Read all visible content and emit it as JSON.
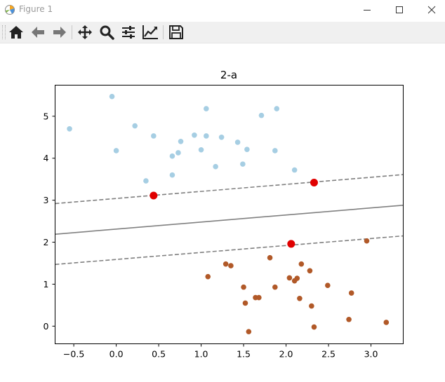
{
  "window": {
    "title": "Figure 1",
    "controls": [
      "minimize",
      "maximize",
      "close"
    ]
  },
  "toolbar": {
    "buttons": [
      {
        "name": "home-button",
        "icon": "home-icon"
      },
      {
        "name": "back-button",
        "icon": "arrow-left-icon"
      },
      {
        "name": "forward-button",
        "icon": "arrow-right-icon"
      },
      {
        "name": "pan-button",
        "icon": "move-icon"
      },
      {
        "name": "zoom-button",
        "icon": "magnifier-icon"
      },
      {
        "name": "subplots-button",
        "icon": "sliders-icon"
      },
      {
        "name": "edit-axis-button",
        "icon": "line-chart-icon"
      },
      {
        "name": "save-button",
        "icon": "floppy-disk-icon"
      }
    ]
  },
  "chart_data": {
    "type": "scatter",
    "title": "2-a",
    "xlabel": "",
    "ylabel": "",
    "xlim": [
      -0.72,
      3.38
    ],
    "ylim": [
      -0.42,
      5.74
    ],
    "xticks": [
      "−0.5",
      "0.0",
      "0.5",
      "1.0",
      "1.5",
      "2.0",
      "2.5",
      "3.0"
    ],
    "xtick_values": [
      -0.5,
      0.0,
      0.5,
      1.0,
      1.5,
      2.0,
      2.5,
      3.0
    ],
    "yticks": [
      "0",
      "1",
      "2",
      "3",
      "4",
      "5"
    ],
    "ytick_values": [
      0,
      1,
      2,
      3,
      4,
      5
    ],
    "grid": false,
    "colors": {
      "class_a": "#a6cee3",
      "class_b": "#b15928",
      "support_vectors": "#e00000",
      "boundary": "#808080"
    },
    "series": [
      {
        "values": [
          [
            -0.55,
            4.7
          ],
          [
            -0.05,
            5.47
          ],
          [
            0.0,
            4.18
          ],
          [
            0.22,
            4.77
          ],
          [
            0.35,
            3.46
          ],
          [
            0.44,
            4.53
          ],
          [
            0.66,
            4.05
          ],
          [
            0.66,
            3.6
          ],
          [
            0.73,
            4.13
          ],
          [
            0.76,
            4.4
          ],
          [
            0.92,
            4.55
          ],
          [
            1.0,
            4.2
          ],
          [
            1.06,
            5.18
          ],
          [
            1.06,
            4.53
          ],
          [
            1.17,
            3.8
          ],
          [
            1.24,
            4.5
          ],
          [
            1.43,
            4.38
          ],
          [
            1.49,
            3.86
          ],
          [
            1.54,
            4.21
          ],
          [
            1.71,
            5.02
          ],
          [
            1.87,
            4.18
          ],
          [
            1.89,
            5.18
          ],
          [
            2.1,
            3.72
          ]
        ]
      },
      {
        "values": [
          [
            1.08,
            1.18
          ],
          [
            1.29,
            1.48
          ],
          [
            1.35,
            1.44
          ],
          [
            1.5,
            0.93
          ],
          [
            1.52,
            0.55
          ],
          [
            1.56,
            -0.13
          ],
          [
            1.64,
            0.68
          ],
          [
            1.68,
            0.68
          ],
          [
            1.81,
            1.63
          ],
          [
            1.87,
            0.93
          ],
          [
            2.04,
            1.15
          ],
          [
            2.1,
            1.08
          ],
          [
            2.13,
            1.14
          ],
          [
            2.16,
            0.66
          ],
          [
            2.18,
            1.48
          ],
          [
            2.28,
            1.32
          ],
          [
            2.3,
            0.48
          ],
          [
            2.33,
            -0.02
          ],
          [
            2.49,
            0.97
          ],
          [
            2.74,
            0.16
          ],
          [
            2.77,
            0.79
          ],
          [
            2.95,
            2.03
          ],
          [
            3.18,
            0.09
          ]
        ]
      }
    ],
    "support_vectors": [
      [
        0.44,
        3.11
      ],
      [
        2.33,
        3.42
      ],
      [
        2.06,
        1.96
      ]
    ],
    "decision_line": [
      [
        -0.72,
        2.19
      ],
      [
        3.38,
        2.88
      ]
    ],
    "margin_upper": [
      [
        -0.72,
        2.92
      ],
      [
        3.38,
        3.61
      ]
    ],
    "margin_lower": [
      [
        -0.72,
        1.47
      ],
      [
        3.38,
        2.15
      ]
    ]
  }
}
